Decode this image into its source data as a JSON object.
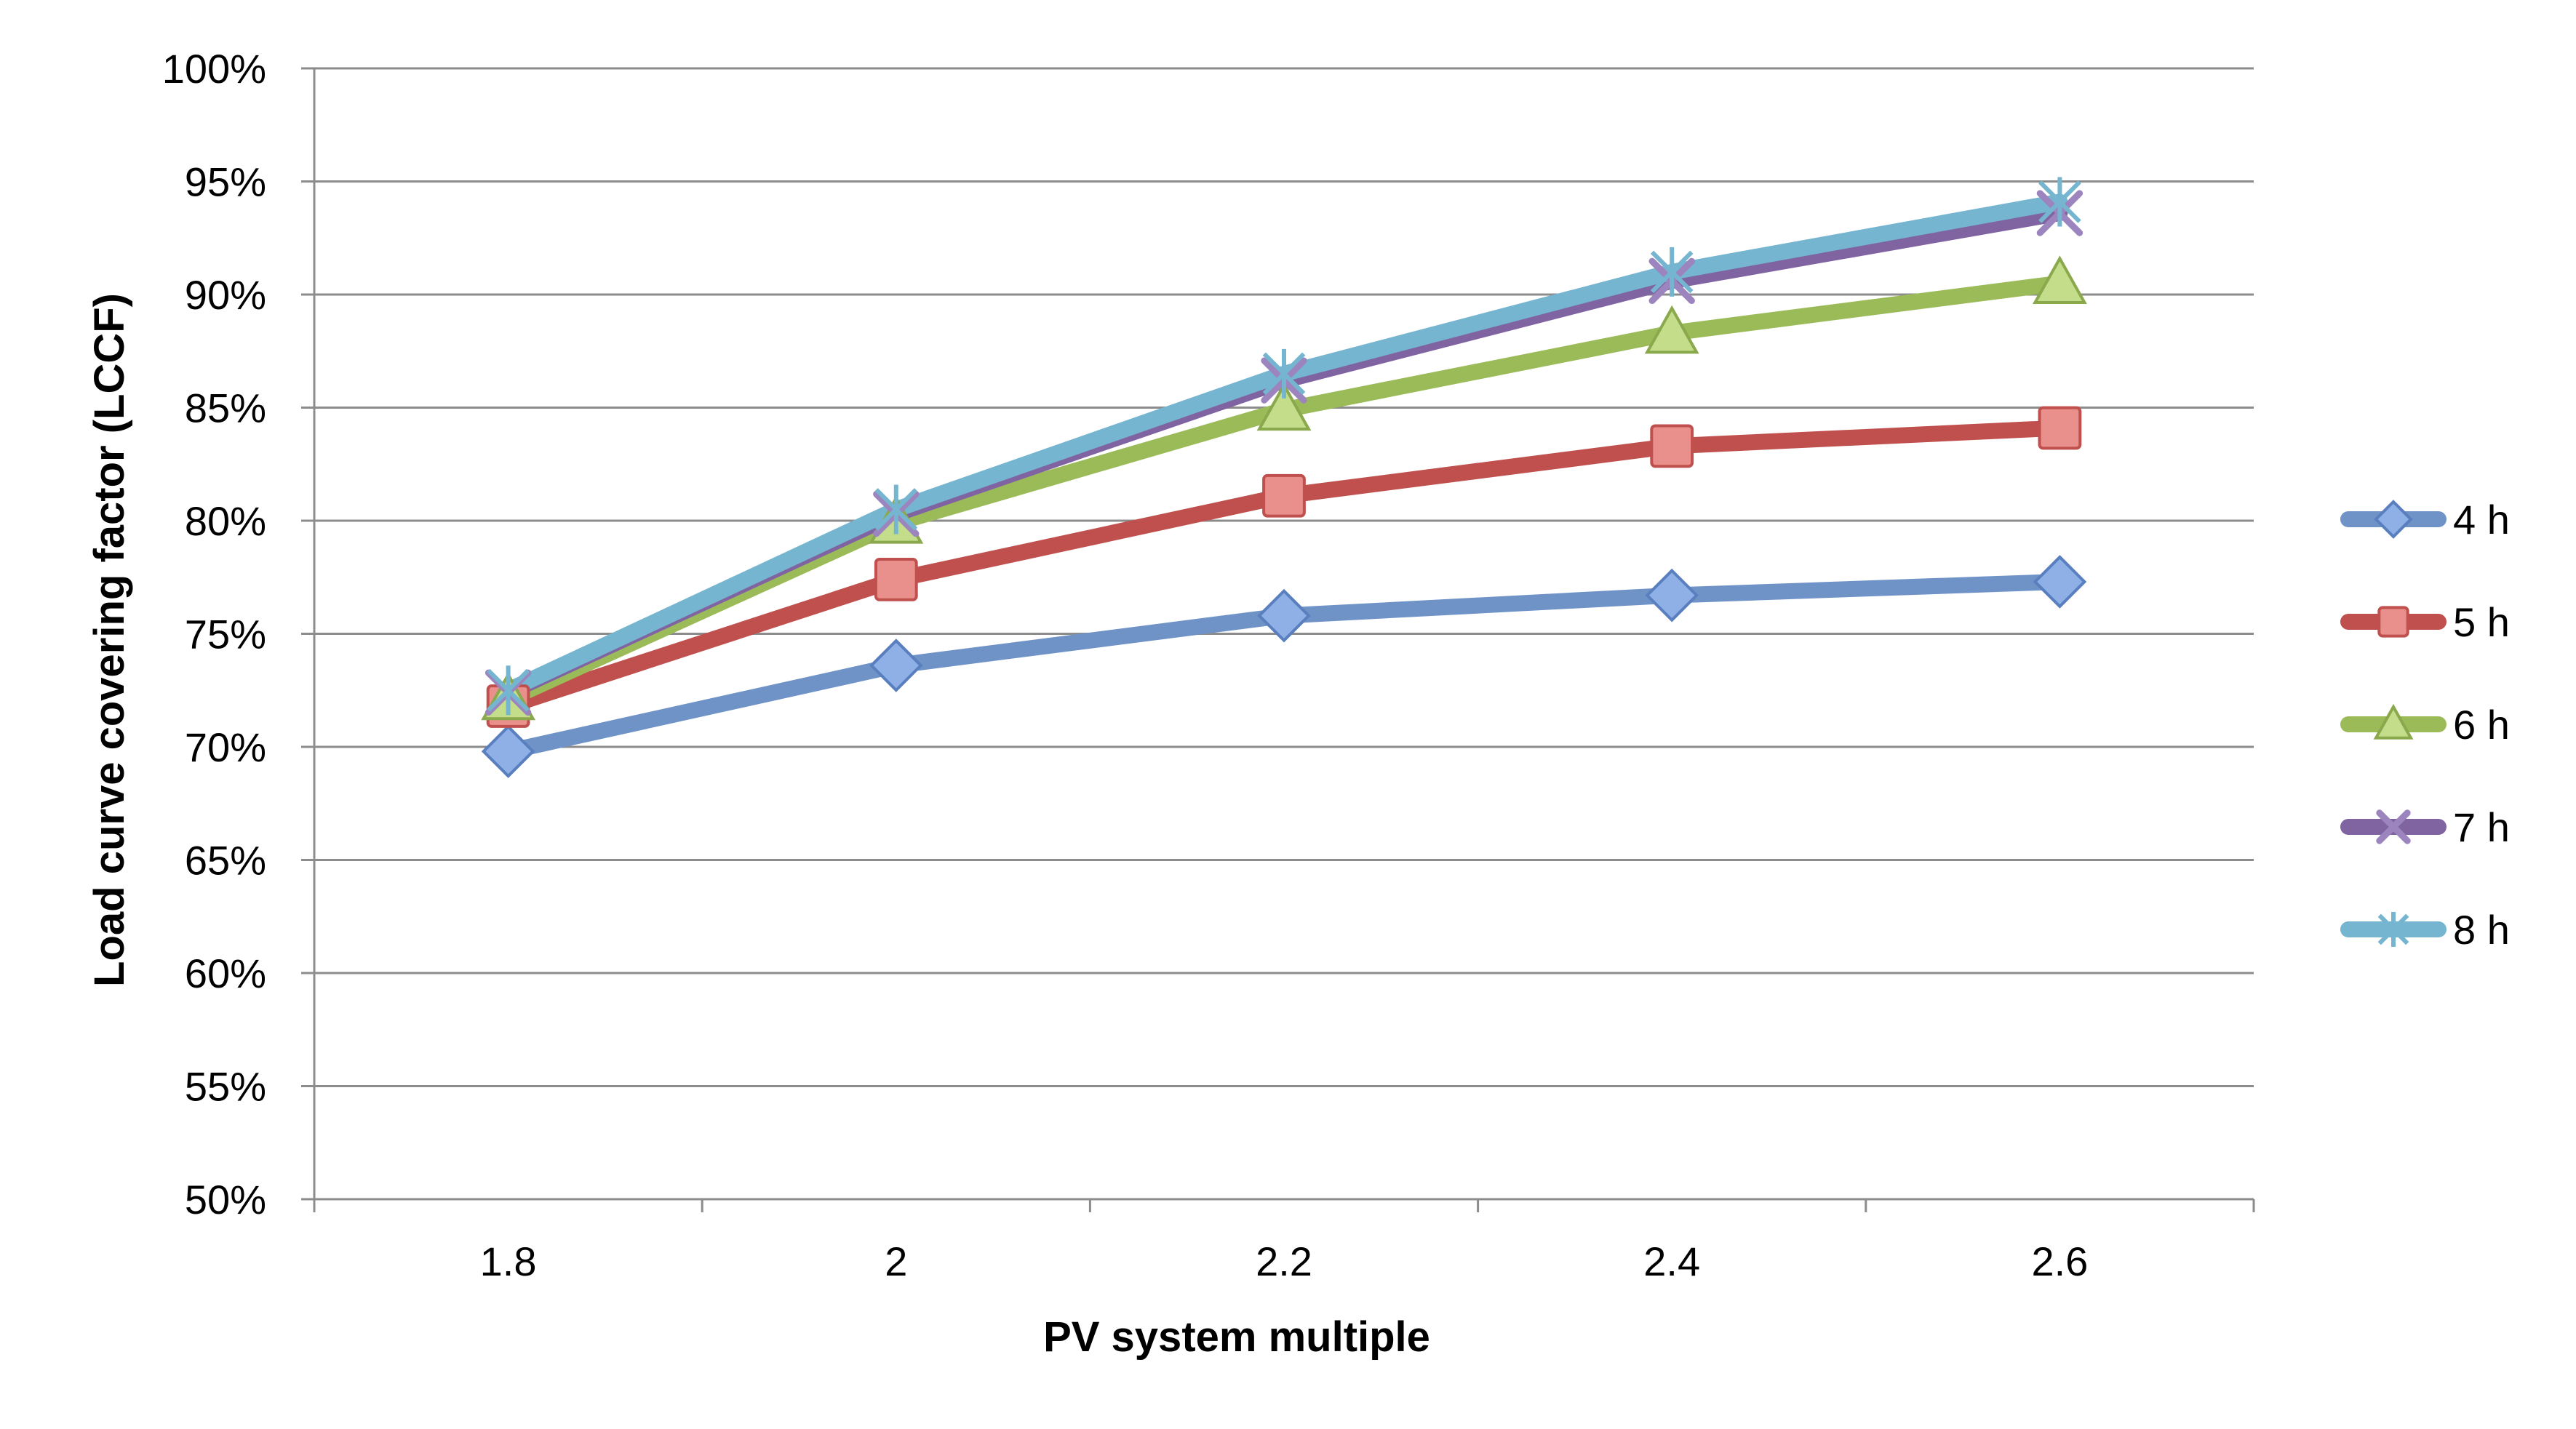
{
  "chart_data": {
    "type": "line",
    "title": "",
    "xlabel": "PV system multiple",
    "ylabel": "Load curve covering factor (LCCF)",
    "categories": [
      "1.8",
      "2",
      "2.2",
      "2.4",
      "2.6"
    ],
    "y_ticks": [
      "50%",
      "55%",
      "60%",
      "65%",
      "70%",
      "75%",
      "80%",
      "85%",
      "90%",
      "95%",
      "100%"
    ],
    "ylim": [
      50,
      100
    ],
    "y_unit": "%",
    "grid": "horizontal",
    "legend_position": "right",
    "series": [
      {
        "name": "4 h",
        "values": [
          69.8,
          73.6,
          75.8,
          76.7,
          77.3
        ],
        "color": "#6f93c7",
        "marker": "diamond",
        "marker_fill": "#8eb0e6"
      },
      {
        "name": "5 h",
        "values": [
          71.8,
          77.4,
          81.1,
          83.3,
          84.1
        ],
        "color": "#c0504d",
        "marker": "square",
        "marker_fill": "#e9908d"
      },
      {
        "name": "6 h",
        "values": [
          72.1,
          79.9,
          84.9,
          88.3,
          90.5
        ],
        "color": "#9bbb59",
        "marker": "triangle",
        "marker_fill": "#c4dd8b"
      },
      {
        "name": "7 h",
        "values": [
          72.4,
          80.3,
          86.2,
          90.6,
          93.6
        ],
        "color": "#8064a2",
        "marker": "x",
        "marker_fill": "#9c84be"
      },
      {
        "name": "8 h",
        "values": [
          72.5,
          80.5,
          86.5,
          91.0,
          94.1
        ],
        "color": "#75b5d0",
        "marker": "star",
        "marker_fill": "#75b5d0"
      }
    ]
  }
}
